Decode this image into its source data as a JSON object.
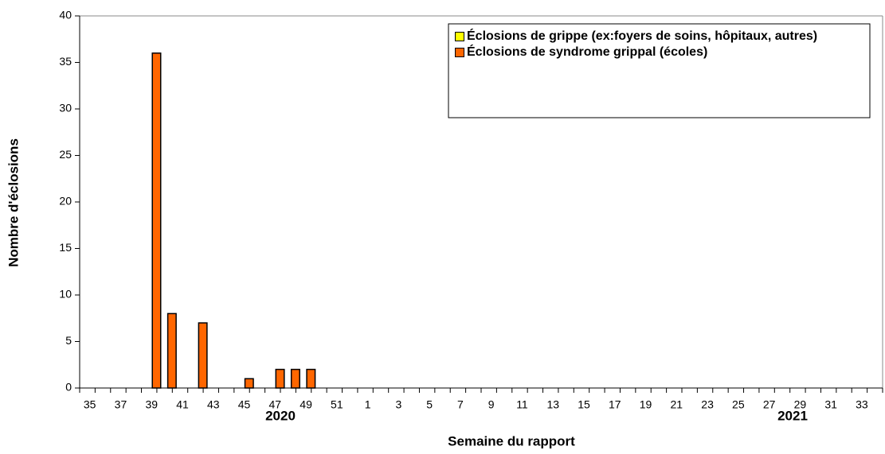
{
  "chart_data": {
    "type": "bar",
    "xlabel": "Semaine du rapport",
    "ylabel": "Nombre d'éclosions",
    "annotations": [
      "2020",
      "2021"
    ],
    "categories": [
      "35",
      null,
      "37",
      null,
      "39",
      null,
      "41",
      null,
      "43",
      null,
      "45",
      null,
      "47",
      null,
      "49",
      null,
      "51",
      null,
      "1",
      null,
      "3",
      null,
      "5",
      null,
      "7",
      null,
      "9",
      null,
      "11",
      null,
      "13",
      null,
      "15",
      null,
      "17",
      null,
      "19",
      null,
      "21",
      null,
      "23",
      null,
      "25",
      null,
      "27",
      null,
      "29",
      null,
      "31",
      null,
      "33",
      null
    ],
    "series": [
      {
        "name": "Éclosions de grippe (ex:foyers de soins, hôpitaux, autres)",
        "color": "#ffff00",
        "values": [
          0,
          0,
          0,
          0,
          0,
          0,
          0,
          0,
          0,
          0,
          0,
          0,
          0,
          0,
          0,
          0,
          0,
          0,
          0,
          0,
          0,
          0,
          0,
          0,
          0,
          0,
          0,
          0,
          0,
          0,
          0,
          0,
          0,
          0,
          0,
          0,
          0,
          0,
          0,
          0,
          0,
          0,
          0,
          0,
          0,
          0,
          0,
          0,
          0,
          0,
          0,
          0
        ]
      },
      {
        "name": "Éclosions de syndrome grippal (écoles)",
        "color": "#ff6600",
        "values": [
          0,
          0,
          0,
          0,
          36,
          8,
          0,
          7,
          0,
          0,
          1,
          0,
          2,
          2,
          2,
          0,
          0,
          0,
          0,
          0,
          0,
          0,
          0,
          0,
          0,
          0,
          0,
          0,
          0,
          0,
          0,
          0,
          0,
          0,
          0,
          0,
          0,
          0,
          0,
          0,
          0,
          0,
          0,
          0,
          0,
          0,
          0,
          0,
          0,
          0,
          0,
          0
        ]
      }
    ],
    "ylim": [
      0,
      40
    ],
    "yticks": [
      0,
      5,
      10,
      15,
      20,
      25,
      30,
      35,
      40
    ],
    "grid": false,
    "legend": "upper right"
  }
}
